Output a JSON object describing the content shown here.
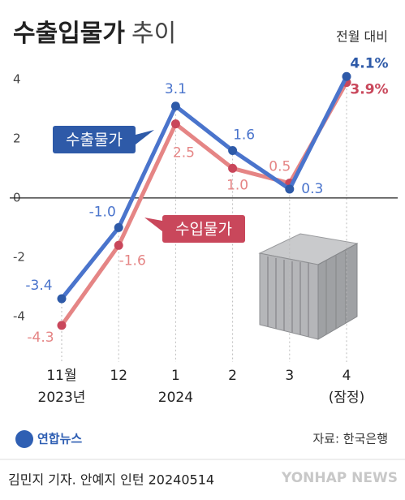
{
  "chart_data": {
    "type": "line",
    "title": "수출입물가",
    "title_suffix": "추이",
    "subtitle": "전월 대비",
    "categories": [
      "11월",
      "12",
      "1",
      "2",
      "3",
      "4"
    ],
    "category_sublabels": [
      "2023년",
      null,
      "2024",
      null,
      null,
      "(잠정)"
    ],
    "series": [
      {
        "name": "수출물가",
        "color": "#4a74cc",
        "values": [
          -3.4,
          -1.0,
          3.1,
          1.6,
          0.3,
          4.1
        ],
        "value_labels": [
          "-3.4",
          "-1.0",
          "3.1",
          "1.6",
          "0.3",
          "4.1%"
        ]
      },
      {
        "name": "수입물가",
        "color": "#e58585",
        "values": [
          -4.3,
          -1.6,
          2.5,
          1.0,
          0.5,
          3.9
        ],
        "value_labels": [
          "-4.3",
          "-1.6",
          "2.5",
          "1.0",
          "0.5",
          "3.9%"
        ]
      }
    ],
    "ylim": [
      -5.4,
      4.6
    ],
    "yticks": [
      -4,
      -2,
      0,
      2,
      4
    ],
    "source": "자료: 한국은행",
    "logo": "연합뉴스",
    "credit": "김민지 기자. 안예지 인턴 20240514",
    "watermark": "YONHAP NEWS"
  }
}
